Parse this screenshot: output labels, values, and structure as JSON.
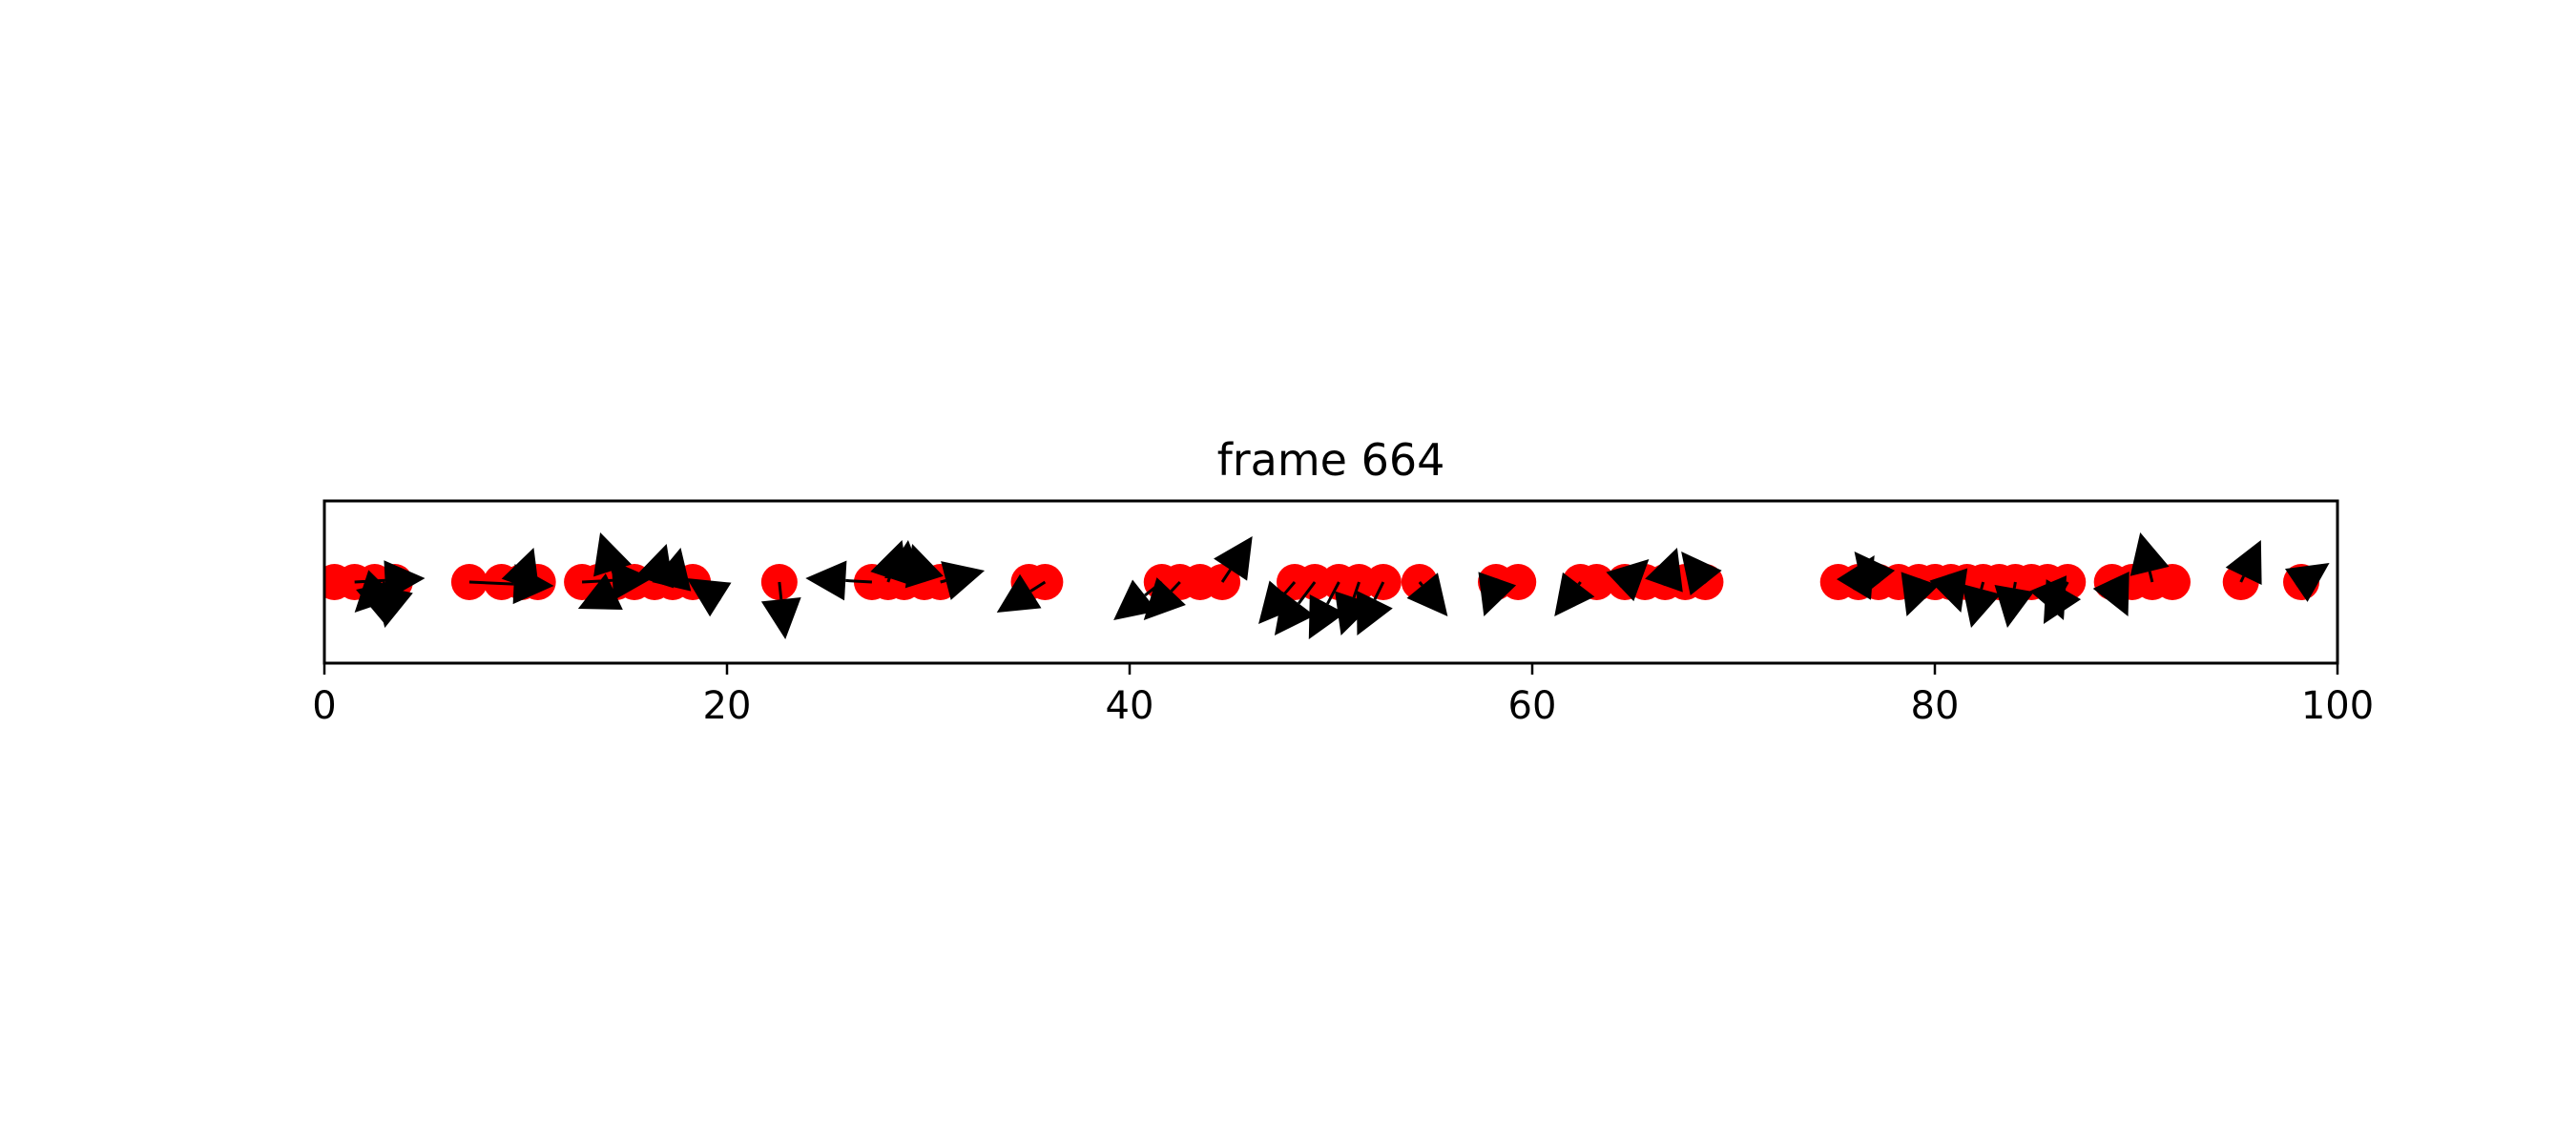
{
  "chart_data": {
    "type": "scatter",
    "title": "frame 664",
    "xlabel": "",
    "ylabel": "",
    "xlim": [
      0,
      100
    ],
    "xticks": [
      0,
      20,
      40,
      60,
      80,
      100
    ],
    "x_tick_labels": [
      "0",
      "20",
      "40",
      "60",
      "80",
      "100"
    ],
    "yticks_visible": false,
    "grid": false,
    "legend": "none",
    "colors": {
      "points": "#ff0000",
      "arrows": "#000000",
      "axes": "#000000"
    },
    "series": [
      {
        "type": "points",
        "x": [
          0.5,
          1.5,
          2.5,
          3.5,
          7.2,
          8.8,
          9.8,
          10.6,
          12.8,
          13.6,
          14.5,
          15.4,
          16.4,
          17.3,
          18.3,
          22.6,
          27.2,
          28.0,
          28.8,
          29.8,
          30.6,
          35.0,
          35.8,
          41.6,
          42.5,
          43.5,
          44.6,
          48.2,
          49.2,
          50.4,
          51.4,
          52.6,
          54.4,
          58.2,
          59.3,
          62.4,
          63.2,
          64.6,
          65.6,
          66.6,
          67.6,
          68.6,
          75.2,
          76.2,
          77.2,
          78.2,
          79.2,
          80.0,
          80.8,
          81.6,
          82.4,
          83.2,
          84.0,
          84.8,
          85.6,
          86.6,
          88.8,
          89.8,
          90.8,
          91.8,
          95.2,
          98.2
        ],
        "y": [
          0,
          0,
          0,
          0,
          0,
          0,
          0,
          0,
          0,
          0,
          0,
          0,
          0,
          0,
          0,
          0,
          0,
          0,
          0,
          0,
          0,
          0,
          0,
          0,
          0,
          0,
          0,
          0,
          0,
          0,
          0,
          0,
          0,
          0,
          0,
          0,
          0,
          0,
          0,
          0,
          0,
          0,
          0,
          0,
          0,
          0,
          0,
          0,
          0,
          0,
          0,
          0,
          0,
          0,
          0,
          0,
          0,
          0,
          0,
          0,
          0,
          0
        ]
      },
      {
        "type": "arrows",
        "x": [
          1.5,
          2.5,
          3.5,
          3.0,
          7.2,
          9.8,
          12.8,
          14.5,
          15.4,
          16.4,
          17.3,
          18.3,
          22.6,
          27.2,
          28.0,
          28.8,
          29.8,
          30.6,
          35.8,
          41.6,
          42.5,
          44.6,
          48.2,
          49.2,
          50.4,
          51.4,
          52.6,
          54.4,
          58.2,
          62.4,
          64.6,
          66.6,
          68.6,
          76.2,
          77.2,
          79.2,
          80.8,
          82.4,
          84.0,
          85.6,
          86.6,
          88.8,
          90.8,
          95.2,
          98.2
        ],
        "y": [
          0,
          0,
          0,
          0,
          0,
          0,
          0,
          0,
          0,
          0,
          0,
          0,
          0,
          0,
          0,
          0,
          0,
          0,
          0,
          0,
          0,
          0,
          0,
          0,
          0,
          0,
          0,
          0,
          0,
          0,
          0,
          0,
          0,
          0,
          0,
          0,
          0,
          0,
          0,
          0,
          0,
          0,
          0,
          0,
          0
        ],
        "u": [
          3.5,
          0.5,
          -0.5,
          -1.5,
          4.2,
          0.6,
          3.5,
          -0.8,
          -2.8,
          0.6,
          0.4,
          -0.3,
          0.3,
          -3.3,
          0.7,
          0.2,
          -0.6,
          2.2,
          -2.4,
          -2.4,
          -1.8,
          1.5,
          -1.8,
          -2.0,
          -1.5,
          -0.9,
          -1.3,
          1.4,
          -0.6,
          -1.3,
          1.2,
          0.6,
          -1.2,
          0.8,
          -1.2,
          -0.6,
          0.5,
          -0.6,
          -0.4,
          0.8,
          -1.2,
          0.8,
          -0.6,
          1.0,
          1.4
        ],
        "v": [
          0.05,
          -0.55,
          -0.6,
          -0.4,
          -0.05,
          0.45,
          0.05,
          0.65,
          -0.35,
          0.5,
          0.45,
          0.05,
          -0.75,
          0.05,
          0.55,
          0.55,
          0.5,
          0.15,
          -0.4,
          -0.5,
          -0.5,
          0.6,
          -0.55,
          -0.7,
          -0.75,
          -0.7,
          -0.7,
          -0.45,
          -0.45,
          -0.45,
          0.3,
          0.45,
          0.4,
          0.35,
          0.4,
          -0.45,
          -0.4,
          -0.6,
          -0.6,
          -0.5,
          -0.55,
          -0.45,
          0.65,
          0.55,
          0.25
        ]
      }
    ]
  }
}
